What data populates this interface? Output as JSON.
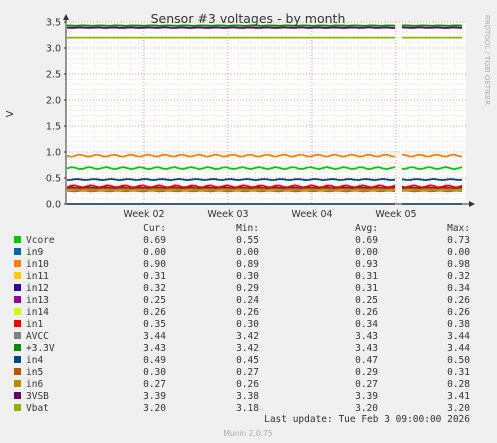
{
  "chart_data": {
    "type": "line",
    "title": "Sensor #3 voltages - by month",
    "ylabel": "V",
    "watermark": "RRDTOOL / TOBI OETIKER",
    "ylim": [
      0,
      3.5
    ],
    "y_ticks": [
      "0.0",
      "0.5",
      "1.0",
      "1.5",
      "2.0",
      "2.5",
      "3.0",
      "3.5"
    ],
    "x_ticks": [
      "Week 02",
      "Week 03",
      "Week 04",
      "Week 05"
    ],
    "legend_headers": [
      "Cur:",
      "Min:",
      "Avg:",
      "Max:"
    ],
    "series": [
      {
        "name": "Vcore",
        "color": "#00cc00",
        "cur": "0.69",
        "min": "0.55",
        "avg": "0.69",
        "max": "0.73"
      },
      {
        "name": "in9",
        "color": "#0066b3",
        "cur": "0.00",
        "min": "0.00",
        "avg": "0.00",
        "max": "0.00"
      },
      {
        "name": "in10",
        "color": "#ff8000",
        "cur": "0.90",
        "min": "0.89",
        "avg": "0.93",
        "max": "0.98"
      },
      {
        "name": "in11",
        "color": "#ffcc00",
        "cur": "0.31",
        "min": "0.30",
        "avg": "0.31",
        "max": "0.32"
      },
      {
        "name": "in12",
        "color": "#330099",
        "cur": "0.32",
        "min": "0.29",
        "avg": "0.31",
        "max": "0.34"
      },
      {
        "name": "in13",
        "color": "#990099",
        "cur": "0.25",
        "min": "0.24",
        "avg": "0.25",
        "max": "0.26"
      },
      {
        "name": "in14",
        "color": "#ccff00",
        "cur": "0.26",
        "min": "0.26",
        "avg": "0.26",
        "max": "0.26"
      },
      {
        "name": "in1",
        "color": "#ff0000",
        "cur": "0.35",
        "min": "0.30",
        "avg": "0.34",
        "max": "0.38"
      },
      {
        "name": "AVCC",
        "color": "#808080",
        "cur": "3.44",
        "min": "3.42",
        "avg": "3.43",
        "max": "3.44"
      },
      {
        "name": "+3.3V",
        "color": "#008f00",
        "cur": "3.43",
        "min": "3.42",
        "avg": "3.43",
        "max": "3.44"
      },
      {
        "name": "in4",
        "color": "#00487d",
        "cur": "0.49",
        "min": "0.45",
        "avg": "0.47",
        "max": "0.50"
      },
      {
        "name": "in5",
        "color": "#b35a00",
        "cur": "0.30",
        "min": "0.27",
        "avg": "0.29",
        "max": "0.31"
      },
      {
        "name": "in6",
        "color": "#b38f00",
        "cur": "0.27",
        "min": "0.26",
        "avg": "0.27",
        "max": "0.28"
      },
      {
        "name": "3VSB",
        "color": "#6b006b",
        "cur": "3.39",
        "min": "3.38",
        "avg": "3.39",
        "max": "3.41"
      },
      {
        "name": "Vbat",
        "color": "#8fb300",
        "cur": "3.20",
        "min": "3.18",
        "avg": "3.20",
        "max": "3.20"
      }
    ],
    "last_update": "Last update: Tue Feb  3 09:00:00 2026",
    "footer": "Munin 2.0.75"
  }
}
